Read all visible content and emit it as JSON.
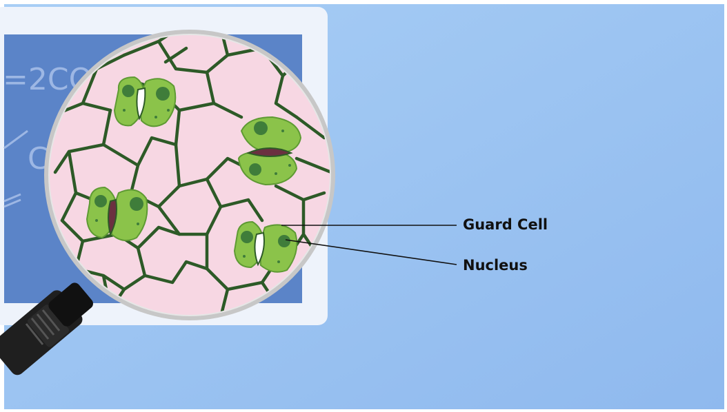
{
  "labels": {
    "guard_cell": "Guard Cell",
    "nucleus": "Nucleus"
  },
  "background_board": {
    "formula_text": "=2CO2",
    "partial_letter": "C"
  },
  "colors": {
    "background": "#9ec6f2",
    "board_frame": "#eef3fb",
    "board_screen": "#5b84c8",
    "epidermis_pink": "#f7d7e3",
    "cell_wall": "#2d5a27",
    "guard_cell_green": "#8bc34a",
    "nucleus_green": "#3f7d3a",
    "lens_rim": "#bfbfbf",
    "handle": "#1f1f1f"
  },
  "icons": {
    "magnifier": "magnifying-glass-icon",
    "microscope_eyepiece": "eyepiece-icon"
  }
}
